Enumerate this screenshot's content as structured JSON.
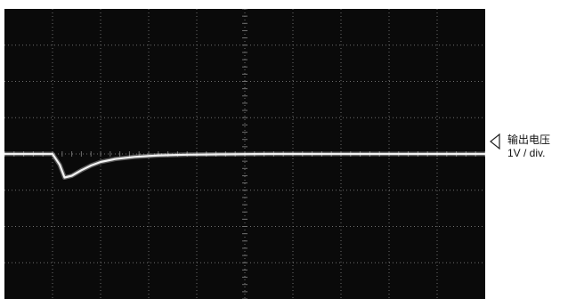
{
  "channel": {
    "label": "输出电压",
    "scale": "1V / div.",
    "marker_icon": "channel-level-triangle-icon"
  },
  "colors": {
    "screen": "#0a0a0a",
    "trace": "#f2f2f2",
    "grid": "#6f6f6f"
  },
  "chart_data": {
    "type": "line",
    "title": "",
    "xlabel": "",
    "ylabel": "",
    "y_unit": "V",
    "volts_per_div": 1,
    "grid": true,
    "divisions": {
      "x": 10,
      "y": 8
    },
    "xlim": [
      0,
      10
    ],
    "ylim": [
      -4,
      4
    ],
    "series": [
      {
        "name": "",
        "x": [
          0,
          0.5,
          1.0,
          1.15,
          1.25,
          1.4,
          1.6,
          1.8,
          2.0,
          2.3,
          2.7,
          3.2,
          3.8,
          4.5,
          5.5,
          6.5,
          7.5,
          8.5,
          10
        ],
        "y": [
          0.0,
          0.0,
          0.0,
          -0.3,
          -0.65,
          -0.6,
          -0.45,
          -0.32,
          -0.22,
          -0.14,
          -0.08,
          -0.04,
          -0.02,
          -0.01,
          0.0,
          0.0,
          0.0,
          0.0,
          0.0
        ]
      }
    ]
  }
}
